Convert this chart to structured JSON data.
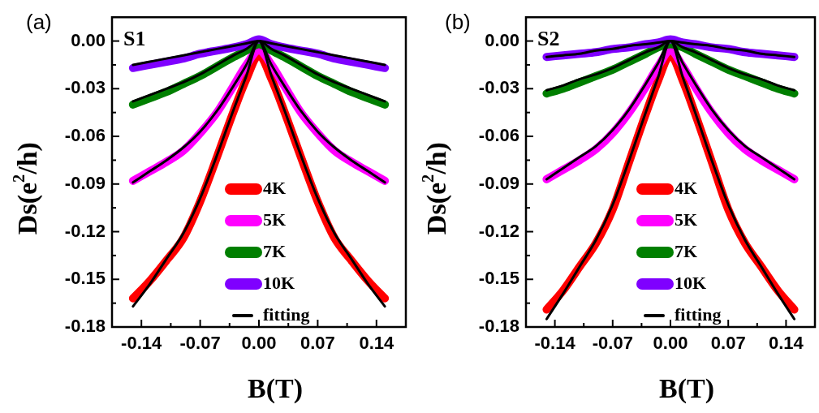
{
  "chart_data": [
    {
      "type": "line",
      "title": "(a)",
      "annotations": [
        "S1"
      ],
      "xlabel": "B(T)",
      "ylabel": "Ds(e$^{2}$/h)",
      "legend": "bottom",
      "marker": "none",
      "x": [
        -0.15,
        -0.13,
        -0.11,
        -0.09,
        -0.07,
        -0.05,
        -0.03,
        -0.015,
        0,
        0.015,
        0.03,
        0.05,
        0.07,
        0.09,
        0.11,
        0.13,
        0.15
      ],
      "xlim": [
        -0.175,
        0.175
      ],
      "xticks": [
        -0.14,
        {
          "value": -0.105,
          "label": null
        },
        -0.07,
        {
          "value": -0.035,
          "label": null
        },
        {
          "value": 0,
          "label": "0.00"
        },
        {
          "value": 0.035,
          "label": null
        },
        0.07,
        {
          "value": 0.105,
          "label": null
        },
        0.14
      ],
      "ylim": [
        -0.18,
        0.015
      ],
      "yticks": [
        {
          "value": 0,
          "label": "0.00"
        },
        {
          "value": -0.015,
          "label": null
        },
        -0.03,
        {
          "value": -0.045,
          "label": null
        },
        -0.06,
        {
          "value": -0.075,
          "label": null
        },
        -0.09,
        {
          "value": -0.105,
          "label": null
        },
        -0.12,
        {
          "value": -0.135,
          "label": null
        },
        -0.15,
        {
          "value": -0.165,
          "label": null
        },
        -0.18
      ],
      "series": [
        {
          "name": "4K",
          "color": "#ff0000",
          "values": [
            -0.162,
            -0.151,
            -0.138,
            -0.124,
            -0.101,
            -0.073,
            -0.044,
            -0.024,
            -0.009,
            -0.024,
            -0.044,
            -0.073,
            -0.101,
            -0.124,
            -0.138,
            -0.151,
            -0.162
          ]
        },
        {
          "name": "5K",
          "color": "#ff00ff",
          "values": [
            -0.088,
            -0.082,
            -0.076,
            -0.069,
            -0.058,
            -0.045,
            -0.028,
            -0.015,
            -0.006,
            -0.015,
            -0.028,
            -0.045,
            -0.058,
            -0.069,
            -0.076,
            -0.082,
            -0.088
          ]
        },
        {
          "name": "7K",
          "color": "#007f00",
          "values": [
            -0.04,
            -0.036,
            -0.032,
            -0.027,
            -0.022,
            -0.016,
            -0.01,
            -0.006,
            -0.002,
            -0.006,
            -0.01,
            -0.016,
            -0.022,
            -0.027,
            -0.032,
            -0.036,
            -0.04
          ]
        },
        {
          "name": "10K",
          "color": "#7f00ff",
          "values": [
            -0.017,
            -0.015,
            -0.013,
            -0.011,
            -0.008,
            -0.006,
            -0.004,
            -0.002,
            0.001,
            -0.002,
            -0.004,
            -0.006,
            -0.008,
            -0.011,
            -0.013,
            -0.015,
            -0.017
          ]
        },
        {
          "name": "fitting",
          "color": "#000000",
          "values": [
            -0.167,
            -0.153,
            -0.137,
            -0.121,
            -0.099,
            -0.072,
            -0.043,
            -0.022,
            0,
            -0.022,
            -0.043,
            -0.072,
            -0.099,
            -0.121,
            -0.137,
            -0.153,
            -0.167
          ]
        },
        {
          "color": "#000000",
          "values": [
            -0.089,
            -0.082,
            -0.075,
            -0.067,
            -0.057,
            -0.044,
            -0.028,
            -0.015,
            0,
            -0.015,
            -0.028,
            -0.044,
            -0.057,
            -0.067,
            -0.075,
            -0.082,
            -0.089
          ]
        },
        {
          "color": "#000000",
          "values": [
            -0.038,
            -0.034,
            -0.03,
            -0.026,
            -0.021,
            -0.015,
            -0.009,
            -0.005,
            0,
            -0.005,
            -0.009,
            -0.015,
            -0.021,
            -0.026,
            -0.03,
            -0.034,
            -0.038
          ]
        },
        {
          "color": "#000000",
          "values": [
            -0.015,
            -0.013,
            -0.011,
            -0.009,
            -0.007,
            -0.005,
            -0.003,
            -0.0015,
            0,
            -0.0015,
            -0.003,
            -0.005,
            -0.007,
            -0.009,
            -0.011,
            -0.013,
            -0.015
          ]
        }
      ]
    },
    {
      "type": "line",
      "title": "(b)",
      "annotations": [
        "S2"
      ],
      "xlabel": "B(T)",
      "ylabel": "Ds(e$^{2}$/h)",
      "legend": "bottom",
      "marker": "none",
      "x": [
        -0.15,
        -0.13,
        -0.11,
        -0.09,
        -0.07,
        -0.05,
        -0.03,
        -0.015,
        0,
        0.015,
        0.03,
        0.05,
        0.07,
        0.09,
        0.11,
        0.13,
        0.15
      ],
      "xlim": [
        -0.175,
        0.175
      ],
      "xticks": [
        -0.14,
        {
          "value": -0.105,
          "label": null
        },
        -0.07,
        {
          "value": -0.035,
          "label": null
        },
        {
          "value": 0,
          "label": "0.00"
        },
        {
          "value": 0.035,
          "label": null
        },
        0.07,
        {
          "value": 0.105,
          "label": null
        },
        0.14
      ],
      "ylim": [
        -0.18,
        0.015
      ],
      "yticks": [
        {
          "value": 0,
          "label": "0.00"
        },
        {
          "value": -0.015,
          "label": null
        },
        -0.03,
        {
          "value": -0.045,
          "label": null
        },
        -0.06,
        {
          "value": -0.075,
          "label": null
        },
        -0.09,
        {
          "value": -0.105,
          "label": null
        },
        -0.12,
        {
          "value": -0.135,
          "label": null
        },
        -0.15,
        {
          "value": -0.165,
          "label": null
        },
        -0.18
      ],
      "series": [
        {
          "name": "4K",
          "color": "#ff0000",
          "values": [
            -0.169,
            -0.157,
            -0.142,
            -0.127,
            -0.106,
            -0.076,
            -0.046,
            -0.025,
            -0.009,
            -0.025,
            -0.046,
            -0.076,
            -0.106,
            -0.127,
            -0.142,
            -0.157,
            -0.169
          ]
        },
        {
          "name": "5K",
          "color": "#ff00ff",
          "values": [
            -0.087,
            -0.081,
            -0.075,
            -0.068,
            -0.058,
            -0.045,
            -0.029,
            -0.016,
            -0.006,
            -0.016,
            -0.029,
            -0.045,
            -0.058,
            -0.068,
            -0.075,
            -0.081,
            -0.087
          ]
        },
        {
          "name": "7K",
          "color": "#007f00",
          "values": [
            -0.033,
            -0.03,
            -0.026,
            -0.022,
            -0.018,
            -0.013,
            -0.008,
            -0.004,
            -0.002,
            -0.004,
            -0.008,
            -0.013,
            -0.018,
            -0.022,
            -0.026,
            -0.03,
            -0.033
          ]
        },
        {
          "name": "10K",
          "color": "#7f00ff",
          "values": [
            -0.01,
            -0.009,
            -0.008,
            -0.007,
            -0.005,
            -0.004,
            -0.002,
            -0.001,
            0.001,
            -0.001,
            -0.002,
            -0.004,
            -0.005,
            -0.007,
            -0.008,
            -0.009,
            -0.01
          ]
        },
        {
          "name": "fitting",
          "color": "#000000",
          "values": [
            -0.175,
            -0.159,
            -0.142,
            -0.125,
            -0.103,
            -0.075,
            -0.045,
            -0.023,
            0,
            -0.023,
            -0.045,
            -0.075,
            -0.103,
            -0.125,
            -0.142,
            -0.159,
            -0.175
          ]
        },
        {
          "color": "#000000",
          "values": [
            -0.087,
            -0.08,
            -0.073,
            -0.066,
            -0.056,
            -0.043,
            -0.027,
            -0.014,
            0,
            -0.014,
            -0.027,
            -0.043,
            -0.056,
            -0.066,
            -0.073,
            -0.08,
            -0.087
          ]
        },
        {
          "color": "#000000",
          "values": [
            -0.031,
            -0.028,
            -0.024,
            -0.021,
            -0.017,
            -0.012,
            -0.007,
            -0.004,
            0,
            -0.004,
            -0.007,
            -0.012,
            -0.017,
            -0.021,
            -0.024,
            -0.028,
            -0.031
          ]
        },
        {
          "color": "#000000",
          "values": [
            -0.01,
            -0.009,
            -0.008,
            -0.006,
            -0.005,
            -0.003,
            -0.002,
            -0.001,
            0,
            -0.001,
            -0.002,
            -0.003,
            -0.005,
            -0.006,
            -0.008,
            -0.009,
            -0.01
          ]
        }
      ]
    }
  ]
}
